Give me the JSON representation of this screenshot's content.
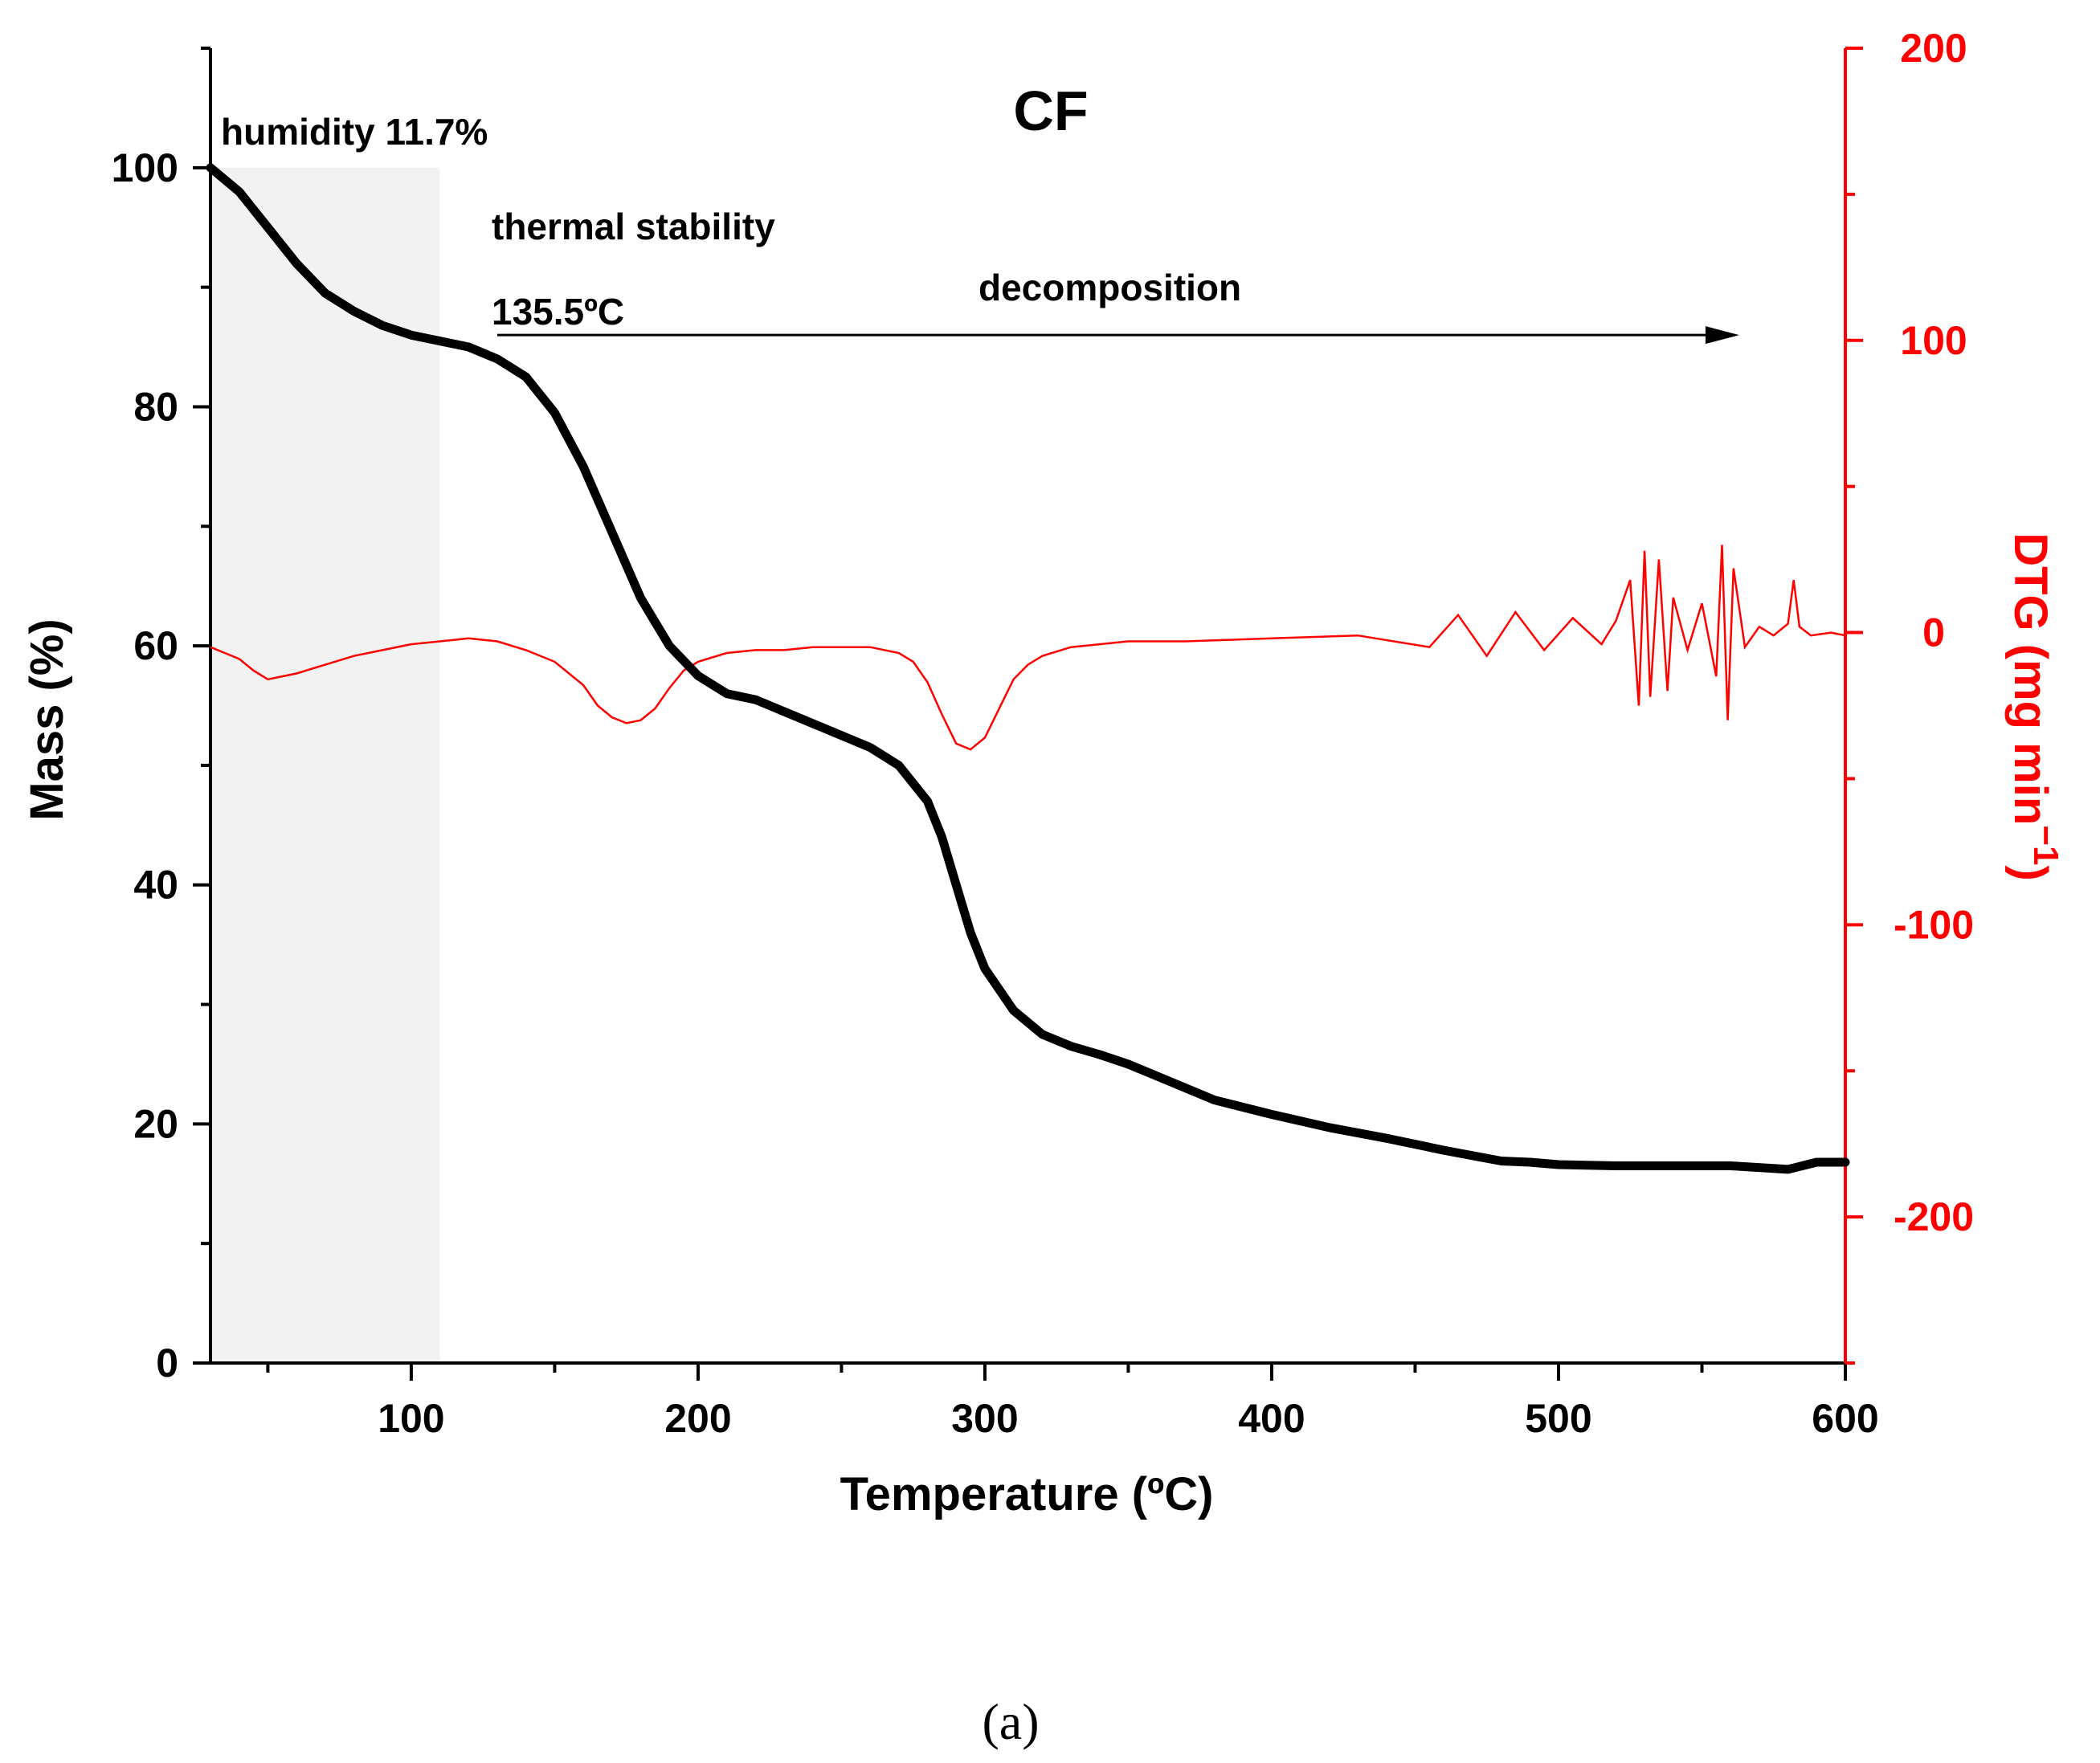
{
  "chart_data": {
    "type": "line",
    "title": "CF",
    "xlabel": "Temperature (ºC)",
    "ylabel_left": "Mass (%)",
    "ylabel_right_main": "DTG (mg min",
    "ylabel_right_sup": "−1",
    "ylabel_right_close": ")",
    "xlim": [
      30,
      600
    ],
    "ylim_left": [
      0,
      110
    ],
    "ylim_right": [
      -250,
      200
    ],
    "x_ticks": [
      "100",
      "200",
      "300",
      "400",
      "500",
      "600"
    ],
    "y_left_ticks": [
      "0",
      "20",
      "40",
      "60",
      "80",
      "100"
    ],
    "y_right_ticks": [
      "-200",
      "-100",
      "0",
      "100",
      "200"
    ],
    "colors": {
      "mass": "#000000",
      "dtg": "#ff0000",
      "shade": "#f2f2f2"
    },
    "shaded_region": {
      "x_start": 30,
      "x_end": 110,
      "y_top": 100
    },
    "annotations": {
      "humidity": "humidity 11.7%",
      "stability": "thermal stability",
      "onset": "135.5ºC",
      "decomposition": "decomposition"
    },
    "arrow": {
      "x_start": 130,
      "x_end": 563,
      "y": 86
    },
    "series": [
      {
        "name": "Mass",
        "axis": "left",
        "x": [
          30,
          40,
          50,
          60,
          70,
          80,
          90,
          100,
          110,
          120,
          130,
          140,
          150,
          160,
          170,
          180,
          190,
          200,
          210,
          220,
          230,
          240,
          250,
          260,
          270,
          280,
          285,
          290,
          295,
          300,
          310,
          320,
          330,
          340,
          350,
          360,
          380,
          400,
          420,
          440,
          460,
          480,
          490,
          500,
          520,
          540,
          560,
          580,
          590,
          600
        ],
        "y": [
          100,
          98,
          95,
          92,
          89.5,
          88,
          86.8,
          86,
          85.5,
          85,
          84,
          82.5,
          79.5,
          75,
          69.5,
          64,
          60,
          57.5,
          56,
          55.5,
          54.5,
          53.5,
          52.5,
          51.5,
          50,
          47,
          44,
          40,
          36,
          33,
          29.5,
          27.5,
          26.5,
          25.8,
          25,
          24,
          22,
          20.8,
          19.7,
          18.8,
          17.8,
          16.9,
          16.8,
          16.6,
          16.5,
          16.5,
          16.5,
          16.2,
          16.8,
          16.8
        ]
      },
      {
        "name": "DTG",
        "axis": "right",
        "x": [
          30,
          35,
          40,
          45,
          50,
          55,
          60,
          70,
          80,
          90,
          100,
          110,
          120,
          130,
          140,
          150,
          160,
          165,
          170,
          175,
          180,
          185,
          190,
          195,
          200,
          210,
          220,
          230,
          240,
          250,
          260,
          270,
          275,
          280,
          285,
          290,
          295,
          300,
          305,
          310,
          315,
          320,
          330,
          340,
          350,
          370,
          400,
          430,
          455,
          465,
          475,
          485,
          495,
          505,
          515,
          520,
          525,
          528,
          530,
          532,
          535,
          538,
          540,
          545,
          550,
          555,
          557,
          559,
          561,
          565,
          570,
          575,
          580,
          582,
          584,
          588,
          595,
          600
        ],
        "y": [
          -5,
          -7,
          -9,
          -13,
          -16,
          -15,
          -14,
          -11,
          -8,
          -6,
          -4,
          -3,
          -2,
          -3,
          -6,
          -10,
          -18,
          -25,
          -29,
          -31,
          -30,
          -26,
          -19,
          -13,
          -10,
          -7,
          -6,
          -6,
          -5,
          -5,
          -5,
          -7,
          -10,
          -17,
          -28,
          -38,
          -40,
          -36,
          -26,
          -16,
          -11,
          -8,
          -5,
          -4,
          -3,
          -3,
          -2,
          -1,
          -5,
          6,
          -8,
          7,
          -6,
          5,
          -4,
          4,
          18,
          -25,
          28,
          -22,
          25,
          -20,
          12,
          -6,
          10,
          -15,
          30,
          -30,
          22,
          -5,
          2,
          -1,
          3,
          18,
          2,
          -1,
          0,
          -1
        ]
      }
    ]
  },
  "caption": "(a)"
}
